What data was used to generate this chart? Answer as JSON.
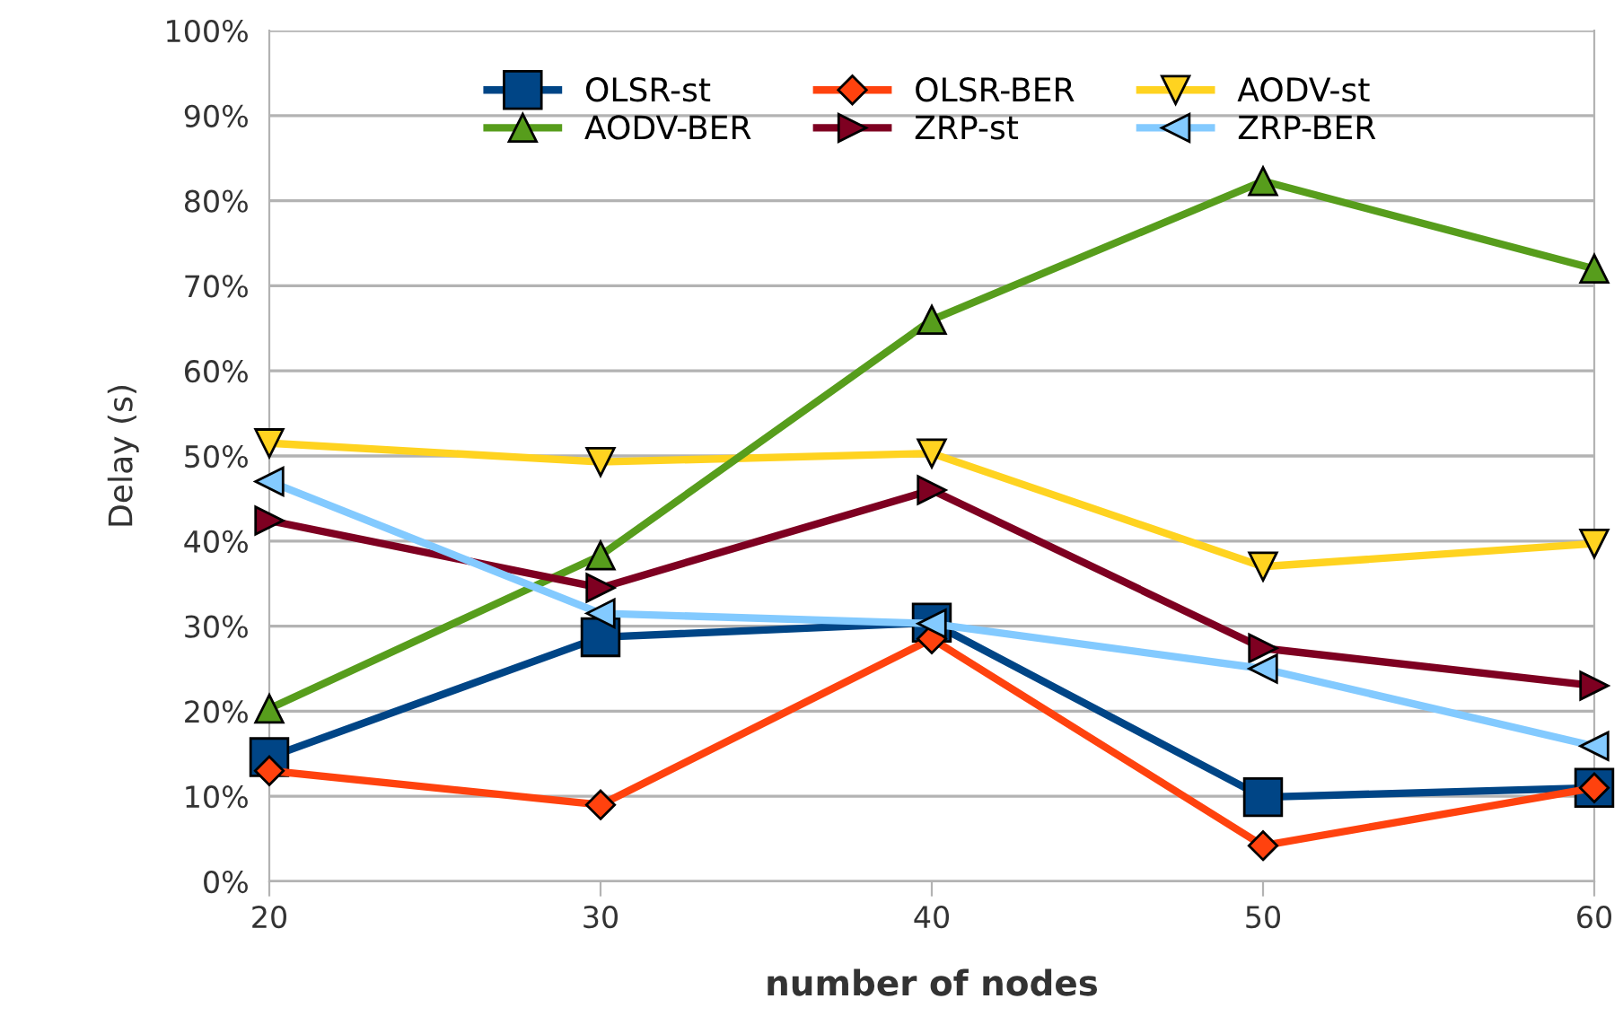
{
  "chart_data": {
    "type": "line",
    "xlabel": "number of nodes",
    "ylabel": "Delay (s)",
    "x": [
      20,
      30,
      40,
      50,
      60
    ],
    "xlim": [
      20,
      60
    ],
    "xticks": [
      20,
      30,
      40,
      50,
      60
    ],
    "ylim": [
      0,
      100
    ],
    "yticks": [
      {
        "value": 0,
        "label": "0%"
      },
      {
        "value": 10,
        "label": "10%"
      },
      {
        "value": 20,
        "label": "20%"
      },
      {
        "value": 30,
        "label": "30%"
      },
      {
        "value": 40,
        "label": "40%"
      },
      {
        "value": 50,
        "label": "50%"
      },
      {
        "value": 60,
        "label": "60%"
      },
      {
        "value": 70,
        "label": "70%"
      },
      {
        "value": 80,
        "label": "80%"
      },
      {
        "value": 90,
        "label": "90%"
      },
      {
        "value": 100,
        "label": "100%"
      }
    ],
    "grid": "y",
    "legend": "top",
    "line_style": "solid",
    "series": [
      {
        "name": "OLSR-st",
        "color": "#004586",
        "marker": "square",
        "values": [
          14.6,
          28.7,
          30.4,
          9.9,
          11
        ]
      },
      {
        "name": "OLSR-BER",
        "color": "#ff420e",
        "marker": "diamond",
        "values": [
          13,
          9,
          28.5,
          4.2,
          11
        ]
      },
      {
        "name": "AODV-st",
        "color": "#ffd320",
        "marker": "triangle_down",
        "values": [
          51.5,
          49.3,
          50.3,
          37,
          39.7
        ]
      },
      {
        "name": "AODV-BER",
        "color": "#579d1c",
        "marker": "triangle",
        "values": [
          20.3,
          38.3,
          66,
          82.3,
          72
        ]
      },
      {
        "name": "ZRP-st",
        "color": "#7e0021",
        "marker": "triangle_right",
        "values": [
          42.4,
          34.5,
          46,
          27.4,
          23
        ]
      },
      {
        "name": "ZRP-BER",
        "color": "#83caff",
        "marker": "triangle_left",
        "values": [
          47,
          31.5,
          30.3,
          25,
          15.9
        ]
      }
    ]
  }
}
